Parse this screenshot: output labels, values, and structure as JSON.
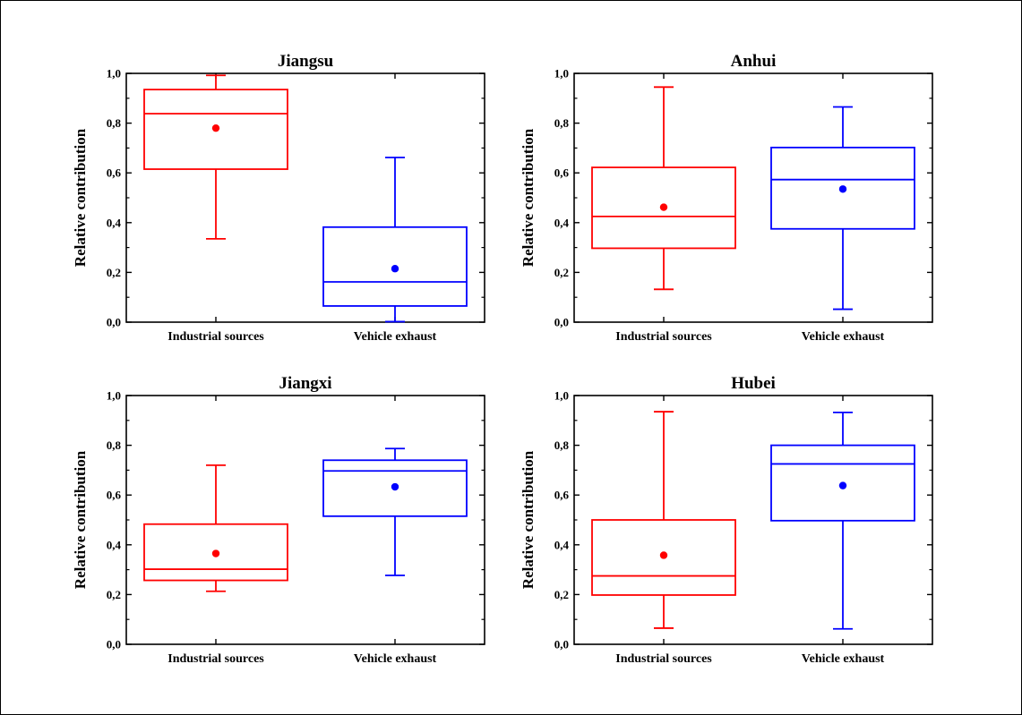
{
  "chart_data": [
    {
      "type": "box",
      "title": "Jiangsu",
      "ylabel": "Relative contribution",
      "ylim": [
        0,
        1.0
      ],
      "yticks": [
        "0,0",
        "0,2",
        "0,4",
        "0,6",
        "0,8",
        "1,0"
      ],
      "categories": [
        "Industrial sources",
        "Vehicle exhaust"
      ],
      "series": [
        {
          "color": "#ff0000",
          "whisker_low": 0.335,
          "q1": 0.615,
          "median": 0.838,
          "q3": 0.935,
          "whisker_high": 0.992,
          "mean": 0.78
        },
        {
          "color": "#0000ff",
          "whisker_low": 0.002,
          "q1": 0.065,
          "median": 0.162,
          "q3": 0.382,
          "whisker_high": 0.662,
          "mean": 0.215
        }
      ]
    },
    {
      "type": "box",
      "title": "Anhui",
      "ylabel": "Relative contribution",
      "ylim": [
        0,
        1.0
      ],
      "yticks": [
        "0,0",
        "0,2",
        "0,4",
        "0,6",
        "0,8",
        "1,0"
      ],
      "categories": [
        "Industrial sources",
        "Vehicle exhaust"
      ],
      "series": [
        {
          "color": "#ff0000",
          "whisker_low": 0.132,
          "q1": 0.297,
          "median": 0.425,
          "q3": 0.622,
          "whisker_high": 0.945,
          "mean": 0.462
        },
        {
          "color": "#0000ff",
          "whisker_low": 0.052,
          "q1": 0.375,
          "median": 0.573,
          "q3": 0.702,
          "whisker_high": 0.865,
          "mean": 0.535
        }
      ]
    },
    {
      "type": "box",
      "title": "Jiangxi",
      "ylabel": "Relative contribution",
      "ylim": [
        0,
        1.0
      ],
      "yticks": [
        "0,0",
        "0,2",
        "0,4",
        "0,6",
        "0,8",
        "1,0"
      ],
      "categories": [
        "Industrial sources",
        "Vehicle exhaust"
      ],
      "series": [
        {
          "color": "#ff0000",
          "whisker_low": 0.213,
          "q1": 0.257,
          "median": 0.302,
          "q3": 0.483,
          "whisker_high": 0.72,
          "mean": 0.365
        },
        {
          "color": "#0000ff",
          "whisker_low": 0.277,
          "q1": 0.515,
          "median": 0.697,
          "q3": 0.74,
          "whisker_high": 0.787,
          "mean": 0.633
        }
      ]
    },
    {
      "type": "box",
      "title": "Hubei",
      "ylabel": "Relative contribution",
      "ylim": [
        0,
        1.0
      ],
      "yticks": [
        "0,0",
        "0,2",
        "0,4",
        "0,6",
        "0,8",
        "1,0"
      ],
      "categories": [
        "Industrial sources",
        "Vehicle exhaust"
      ],
      "series": [
        {
          "color": "#ff0000",
          "whisker_low": 0.065,
          "q1": 0.198,
          "median": 0.275,
          "q3": 0.5,
          "whisker_high": 0.935,
          "mean": 0.358
        },
        {
          "color": "#0000ff",
          "whisker_low": 0.062,
          "q1": 0.497,
          "median": 0.725,
          "q3": 0.8,
          "whisker_high": 0.932,
          "mean": 0.638
        }
      ]
    }
  ]
}
